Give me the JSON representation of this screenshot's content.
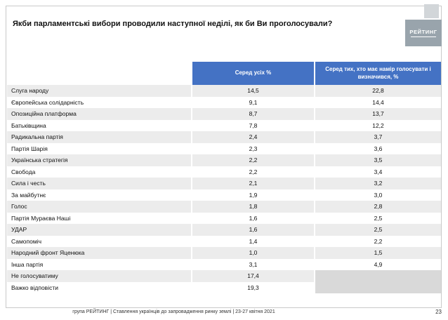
{
  "slide": {
    "title": "Якби парламентські вибори проводили наступної неділі, як би Ви проголосували?",
    "footer": "група РЕЙТИНГ | Ставлення українців до запровадження ринку землі | 23-27 квітня 2021",
    "page_number": "23",
    "logo_text": "РЕЙТИНГ"
  },
  "table": {
    "headers": {
      "party": "",
      "all": "Серед усіх %",
      "decided": "Серед тих, хто має намір голосувати і визначився, %"
    },
    "rows": [
      {
        "label": "Слуга народу",
        "all": "14,5",
        "decided": "22,8"
      },
      {
        "label": "Європейська солідарність",
        "all": "9,1",
        "decided": "14,4"
      },
      {
        "label": "Опозиційна платформа",
        "all": "8,7",
        "decided": "13,7"
      },
      {
        "label": "Батьківщина",
        "all": "7,8",
        "decided": "12,2"
      },
      {
        "label": "Радикальна партія",
        "all": "2,4",
        "decided": "3,7"
      },
      {
        "label": "Партія Шарія",
        "all": "2,3",
        "decided": "3,6"
      },
      {
        "label": "Українська стратегія",
        "all": "2,2",
        "decided": "3,5"
      },
      {
        "label": "Свобода",
        "all": "2,2",
        "decided": "3,4"
      },
      {
        "label": "Сила і честь",
        "all": "2,1",
        "decided": "3,2"
      },
      {
        "label": "За майбутнє",
        "all": "1,9",
        "decided": "3,0"
      },
      {
        "label": "Голос",
        "all": "1,8",
        "decided": "2,8"
      },
      {
        "label": "Партія Мураєва Наші",
        "all": "1,6",
        "decided": "2,5"
      },
      {
        "label": "УДАР",
        "all": "1,6",
        "decided": "2,5"
      },
      {
        "label": "Самопоміч",
        "all": "1,4",
        "decided": "2,2"
      },
      {
        "label": "Народний фронт Яценюка",
        "all": "1,0",
        "decided": "1,5"
      },
      {
        "label": "Інша партія",
        "all": "3,1",
        "decided": "4,9"
      },
      {
        "label": "Не голосуватиму",
        "all": "17,4",
        "decided": ""
      },
      {
        "label": "Важко відповісти",
        "all": "19,3",
        "decided": ""
      }
    ]
  },
  "colors": {
    "header_blue": "#4472C4",
    "stripe_gray": "#ECECEC",
    "empty_cell_gray": "#D9D9D9",
    "logo_gray": "#99A4AC"
  }
}
